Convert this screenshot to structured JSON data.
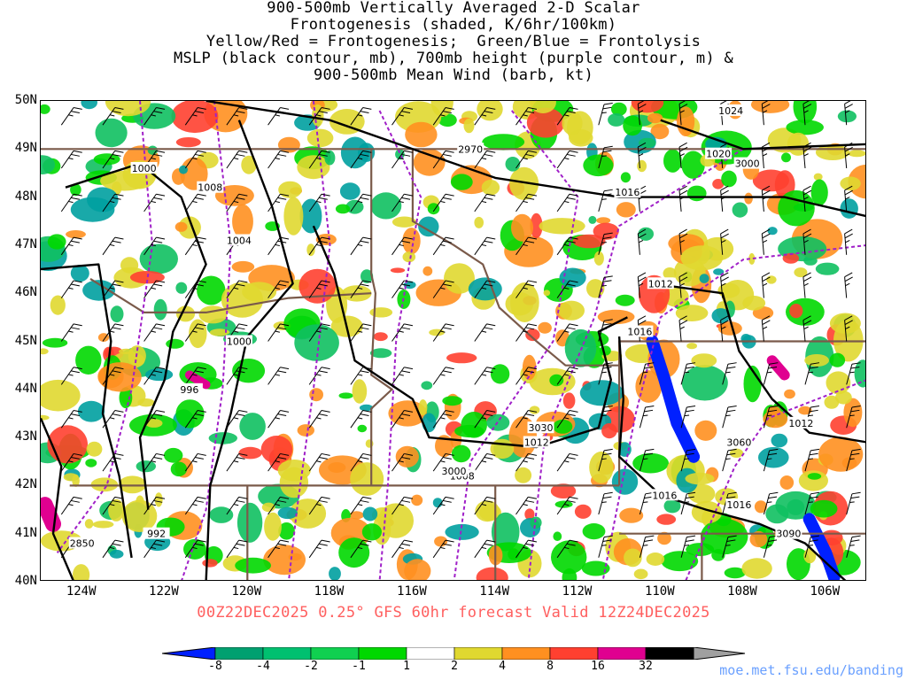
{
  "title_lines": [
    "900-500mb Vertically Averaged 2-D Scalar",
    "Frontogenesis (shaded, K/6hr/100km)",
    "Yellow/Red = Frontogenesis;  Green/Blue = Frontolysis",
    "MSLP (black contour, mb), 700mb height (purple contour, m) &",
    "900-500mb Mean Wind (barb, kt)"
  ],
  "map": {
    "lon_range": [
      -125,
      -105
    ],
    "lat_range": [
      40,
      50
    ],
    "lat_labels": [
      "50N",
      "49N",
      "48N",
      "47N",
      "46N",
      "45N",
      "44N",
      "43N",
      "42N",
      "41N",
      "40N"
    ],
    "lon_labels": [
      "124W",
      "122W",
      "120W",
      "118W",
      "116W",
      "114W",
      "112W",
      "110W",
      "108W",
      "106W"
    ],
    "colors": {
      "black_contour": "#000000",
      "purple_contour": "#a020c8",
      "border": "#7a5a4a",
      "wind_barb": "#000000"
    },
    "mslp_contour_labels": [
      {
        "text": "1024",
        "lon": -108.3,
        "lat": 49.8
      },
      {
        "text": "1020",
        "lon": -108.6,
        "lat": 48.9
      },
      {
        "text": "1016",
        "lon": -110.8,
        "lat": 48.1
      },
      {
        "text": "1012",
        "lon": -110.0,
        "lat": 46.2
      },
      {
        "text": "1016",
        "lon": -110.5,
        "lat": 45.2
      },
      {
        "text": "1000",
        "lon": -122.5,
        "lat": 48.6
      },
      {
        "text": "1008",
        "lon": -120.9,
        "lat": 48.2
      },
      {
        "text": "1004",
        "lon": -120.2,
        "lat": 47.1
      },
      {
        "text": "1000",
        "lon": -120.2,
        "lat": 45.0
      },
      {
        "text": "996",
        "lon": -121.4,
        "lat": 44.0
      },
      {
        "text": "1012",
        "lon": -113.0,
        "lat": 42.9
      },
      {
        "text": "1008",
        "lon": -114.8,
        "lat": 42.2
      },
      {
        "text": "1016",
        "lon": -109.9,
        "lat": 41.8
      },
      {
        "text": "1016",
        "lon": -108.1,
        "lat": 41.6
      },
      {
        "text": "1012",
        "lon": -106.6,
        "lat": 43.3
      },
      {
        "text": "992",
        "lon": -122.2,
        "lat": 41.0
      }
    ],
    "height_contour_labels": [
      {
        "text": "2970",
        "lon": -114.6,
        "lat": 49.0
      },
      {
        "text": "3000",
        "lon": -107.9,
        "lat": 48.7
      },
      {
        "text": "3030",
        "lon": -112.9,
        "lat": 43.2
      },
      {
        "text": "3000",
        "lon": -115.0,
        "lat": 42.3
      },
      {
        "text": "3060",
        "lon": -108.1,
        "lat": 42.9
      },
      {
        "text": "3090",
        "lon": -106.9,
        "lat": 41.0
      },
      {
        "text": "2850",
        "lon": -124.0,
        "lat": 40.8
      }
    ]
  },
  "valid_text": "00Z22DEC2025 0.25° GFS 60hr forecast Valid 12Z24DEC2025",
  "colorbar": {
    "labels": [
      "-8",
      "-4",
      "-2",
      "-1",
      "1",
      "2",
      "4",
      "8",
      "16",
      "32"
    ],
    "colors": [
      "#0020ff",
      "#00a070",
      "#00c070",
      "#10d050",
      "#00d800",
      "#ffffff",
      "#e0d830",
      "#ff9020",
      "#ff4030",
      "#e00090",
      "#000000",
      "#a0a0a0"
    ]
  },
  "credit": "moe.met.fsu.edu/banding"
}
